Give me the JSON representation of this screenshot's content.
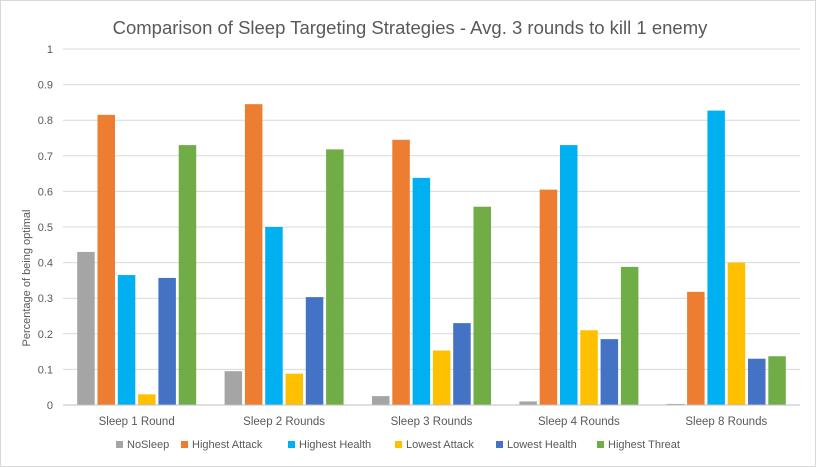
{
  "chart_data": {
    "type": "bar",
    "title": "Comparison of Sleep Targeting Strategies - Avg. 3 rounds to kill 1 enemy",
    "xlabel": "",
    "ylabel": "Percentage of being optimal",
    "ylim": [
      0,
      1
    ],
    "yticks": [
      "0",
      "0.1",
      "0.2",
      "0.3",
      "0.4",
      "0.5",
      "0.6",
      "0.7",
      "0.8",
      "0.9",
      "1"
    ],
    "grid": true,
    "legend_position": "bottom",
    "categories": [
      "Sleep 1 Round",
      "Sleep 2 Rounds",
      "Sleep 3 Rounds",
      "Sleep 4 Rounds",
      "Sleep 8 Rounds"
    ],
    "series": [
      {
        "name": "NoSleep",
        "color": "#a5a5a5",
        "values": [
          0.43,
          0.095,
          0.025,
          0.01,
          0.003
        ]
      },
      {
        "name": "Highest Attack",
        "color": "#ed7d31",
        "values": [
          0.815,
          0.845,
          0.745,
          0.605,
          0.318
        ]
      },
      {
        "name": "Highest Health",
        "color": "#00b0f0",
        "values": [
          0.365,
          0.5,
          0.638,
          0.73,
          0.827
        ]
      },
      {
        "name": "Lowest Attack",
        "color": "#ffc000",
        "values": [
          0.03,
          0.088,
          0.153,
          0.21,
          0.4
        ]
      },
      {
        "name": "Lowest Health",
        "color": "#4472c4",
        "values": [
          0.357,
          0.303,
          0.23,
          0.185,
          0.13
        ]
      },
      {
        "name": "Highest Threat",
        "color": "#70ad47",
        "values": [
          0.73,
          0.718,
          0.557,
          0.388,
          0.137
        ]
      }
    ]
  }
}
